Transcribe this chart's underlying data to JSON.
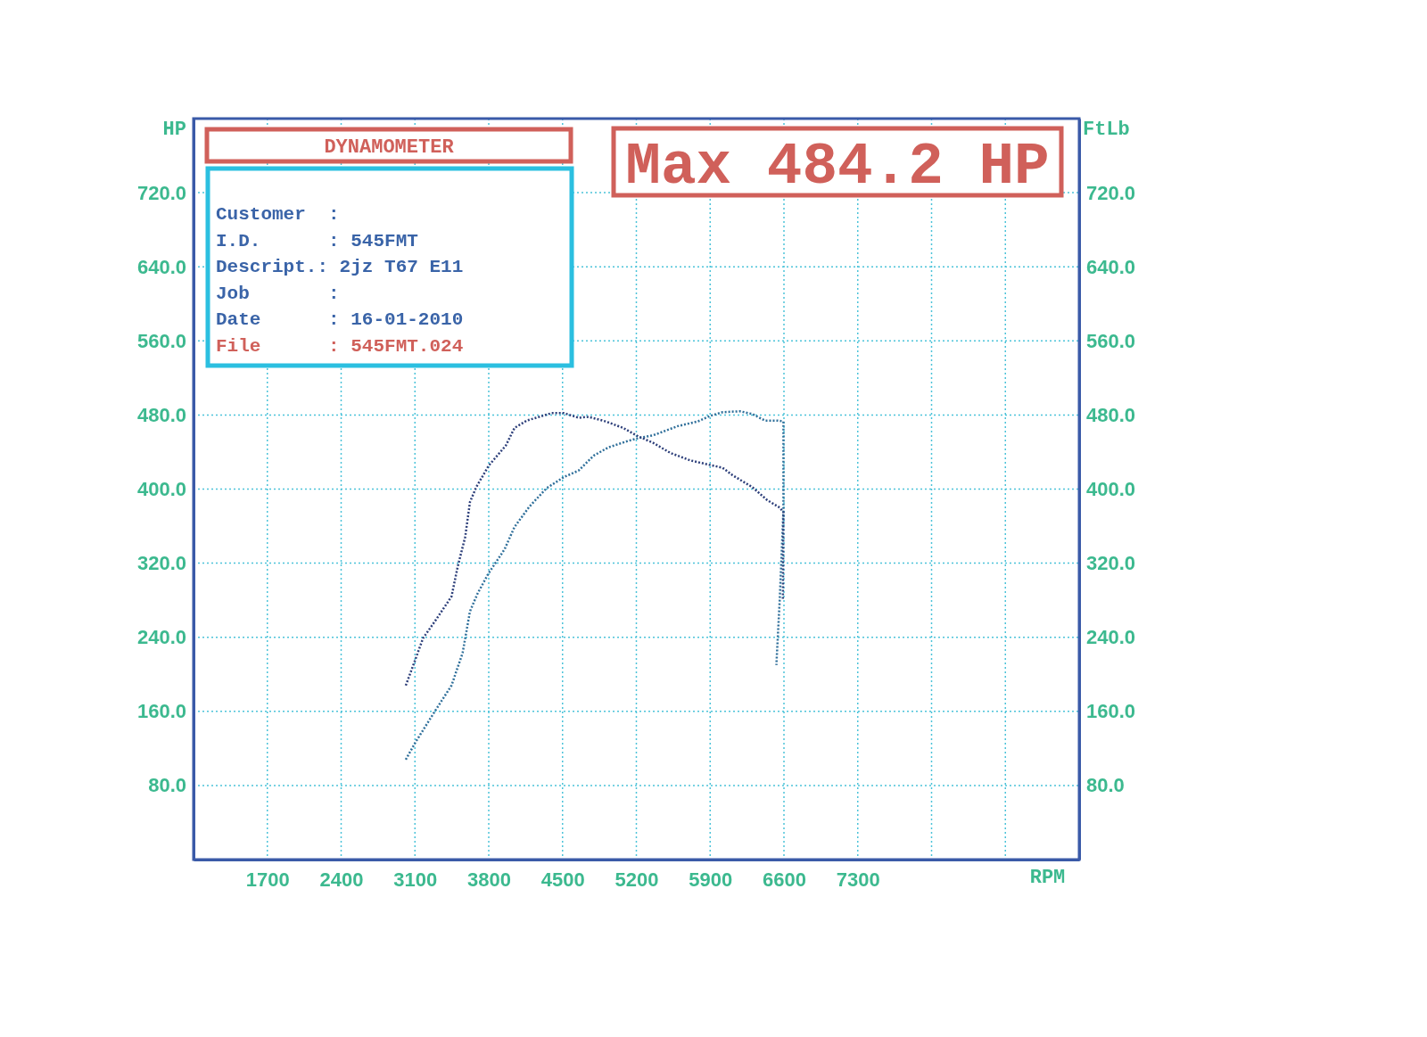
{
  "chart_data": {
    "type": "line",
    "xlabel": "RPM",
    "ylabel": "HP",
    "y2label": "FtLb",
    "xlim": [
      1000,
      9400
    ],
    "xticks": [
      1700,
      2400,
      3100,
      3800,
      4500,
      5200,
      5900,
      6600,
      7300,
      {
        "value": 8000,
        "label": null
      },
      {
        "value": 8700,
        "label": null
      }
    ],
    "ylim": [
      0,
      800
    ],
    "yticks": [
      {
        "value": 80,
        "label": "80.0"
      },
      {
        "value": 160,
        "label": "160.0"
      },
      {
        "value": 240,
        "label": "240.0"
      },
      {
        "value": 320,
        "label": "320.0"
      },
      {
        "value": 400,
        "label": "400.0"
      },
      {
        "value": 480,
        "label": "480.0"
      },
      {
        "value": 560,
        "label": "560.0"
      },
      {
        "value": 640,
        "label": "640.0"
      },
      {
        "value": 720,
        "label": "720.0"
      }
    ],
    "y2lim": [
      0,
      800
    ],
    "y2ticks": [
      {
        "value": 80,
        "label": "80.0"
      },
      {
        "value": 160,
        "label": "160.0"
      },
      {
        "value": 240,
        "label": "240.0"
      },
      {
        "value": 320,
        "label": "320.0"
      },
      {
        "value": 400,
        "label": "400.0"
      },
      {
        "value": 480,
        "label": "480.0"
      },
      {
        "value": 560,
        "label": "560.0"
      },
      {
        "value": 640,
        "label": "640.0"
      },
      {
        "value": 720,
        "label": "720.0"
      }
    ],
    "grid": true,
    "line_style": "dotted",
    "series": [
      {
        "color": "#2f6f9a",
        "x": [
          3013,
          3107,
          3294,
          3447,
          3552,
          3622,
          3693,
          3798,
          3950,
          4044,
          4185,
          4349,
          4513,
          4653,
          4794,
          4934,
          5122,
          5216,
          5358,
          5594,
          5782,
          5900,
          6018,
          6183,
          6301,
          6419,
          6537,
          6595,
          6595,
          6560,
          6528
        ],
        "values": [
          108,
          127,
          161,
          188,
          223,
          268,
          287,
          309,
          335,
          359,
          381,
          401,
          413,
          420,
          436,
          445,
          452,
          455,
          458,
          468,
          473,
          479,
          483,
          484,
          481,
          474,
          474,
          473,
          377,
          281,
          210
        ]
      },
      {
        "color": "#2d3f7a",
        "axis": "y2",
        "x": [
          3013,
          3107,
          3177,
          3294,
          3447,
          3505,
          3576,
          3622,
          3681,
          3798,
          3857,
          3962,
          4044,
          4161,
          4279,
          4396,
          4513,
          4653,
          4747,
          4911,
          5075,
          5216,
          5358,
          5523,
          5711,
          5900,
          6018,
          6112,
          6301,
          6442,
          6560,
          6595,
          6590
        ],
        "values": [
          188,
          217,
          239,
          258,
          284,
          316,
          348,
          386,
          402,
          425,
          433,
          447,
          466,
          474,
          478,
          482,
          482,
          477,
          478,
          473,
          466,
          457,
          450,
          439,
          431,
          426,
          423,
          415,
          402,
          388,
          380,
          375,
          281
        ]
      }
    ],
    "annotations": [
      "DYNAMOMETER",
      "Customer  :",
      "I.D.      : 545FMT",
      "Descript.: 2jz T67 E11",
      "Job       :",
      "Date      : 16-01-2010",
      "File      : 545FMT.024",
      "Max 484.2 HP"
    ]
  }
}
